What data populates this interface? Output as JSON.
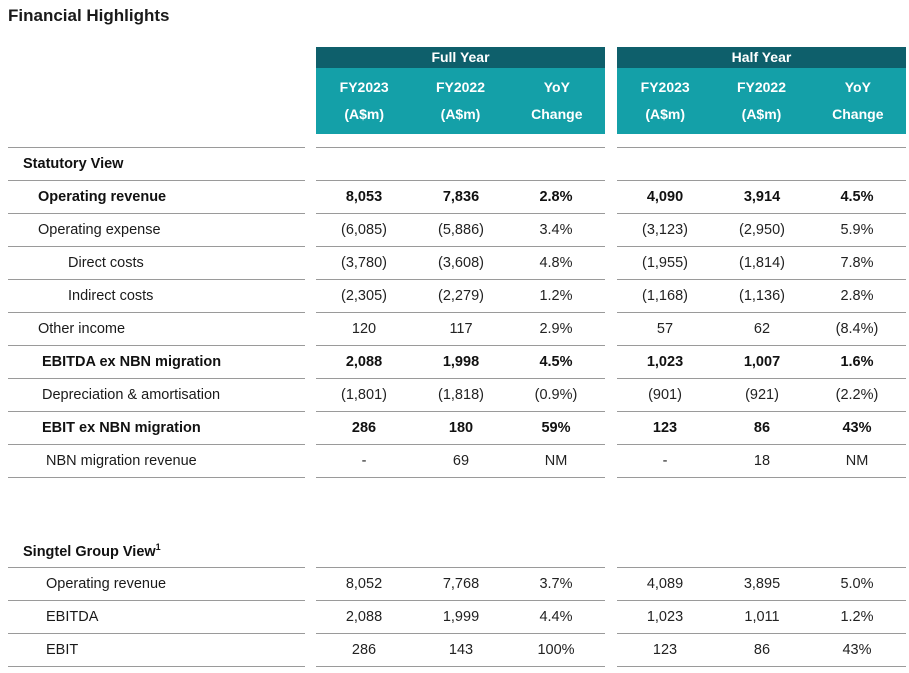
{
  "title": "Financial Highlights",
  "groups": {
    "full_year": {
      "label": "Full Year",
      "cols": [
        {
          "l1": "FY2023",
          "l2": "(A$m)"
        },
        {
          "l1": "FY2022",
          "l2": "(A$m)"
        },
        {
          "l1": "YoY",
          "l2": "Change"
        }
      ]
    },
    "half_year": {
      "label": "Half Year",
      "cols": [
        {
          "l1": "FY2023",
          "l2": "(A$m)"
        },
        {
          "l1": "FY2022",
          "l2": "(A$m)"
        },
        {
          "l1": "YoY",
          "l2": "Change"
        }
      ]
    }
  },
  "statutory": {
    "heading": "Statutory View",
    "rows": [
      {
        "label": "Operating revenue",
        "bold": true,
        "values": [
          "8,053",
          "7,836",
          "2.8%",
          "4,090",
          "3,914",
          "4.5%"
        ]
      },
      {
        "label": "Operating expense",
        "bold": false,
        "values": [
          "(6,085)",
          "(5,886)",
          "3.4%",
          "(3,123)",
          "(2,950)",
          "5.9%"
        ]
      },
      {
        "label": "Direct costs",
        "bold": false,
        "values": [
          "(3,780)",
          "(3,608)",
          "4.8%",
          "(1,955)",
          "(1,814)",
          "7.8%"
        ]
      },
      {
        "label": "Indirect costs",
        "bold": false,
        "values": [
          "(2,305)",
          "(2,279)",
          "1.2%",
          "(1,168)",
          "(1,136)",
          "2.8%"
        ]
      },
      {
        "label": "Other income",
        "bold": false,
        "values": [
          "120",
          "117",
          "2.9%",
          "57",
          "62",
          "(8.4%)"
        ]
      },
      {
        "label": "EBITDA ex NBN migration",
        "bold": true,
        "values": [
          "2,088",
          "1,998",
          "4.5%",
          "1,023",
          "1,007",
          "1.6%"
        ]
      },
      {
        "label": "Depreciation & amortisation",
        "bold": false,
        "values": [
          "(1,801)",
          "(1,818)",
          "(0.9%)",
          "(901)",
          "(921)",
          "(2.2%)"
        ]
      },
      {
        "label": "EBIT ex NBN migration",
        "bold": true,
        "values": [
          "286",
          "180",
          "59%",
          "123",
          "86",
          "43%"
        ]
      },
      {
        "label": "NBN migration revenue",
        "bold": false,
        "values": [
          "-",
          "69",
          "NM",
          "-",
          "18",
          "NM"
        ]
      }
    ]
  },
  "singtel": {
    "heading": "Singtel Group View",
    "footnote": "1",
    "rows": [
      {
        "label": "Operating revenue",
        "bold": false,
        "values": [
          "8,052",
          "7,768",
          "3.7%",
          "4,089",
          "3,895",
          "5.0%"
        ]
      },
      {
        "label": "EBITDA",
        "bold": false,
        "values": [
          "2,088",
          "1,999",
          "4.4%",
          "1,023",
          "1,011",
          "1.2%"
        ]
      },
      {
        "label": "EBIT",
        "bold": false,
        "values": [
          "286",
          "143",
          "100%",
          "123",
          "86",
          "43%"
        ]
      }
    ]
  }
}
